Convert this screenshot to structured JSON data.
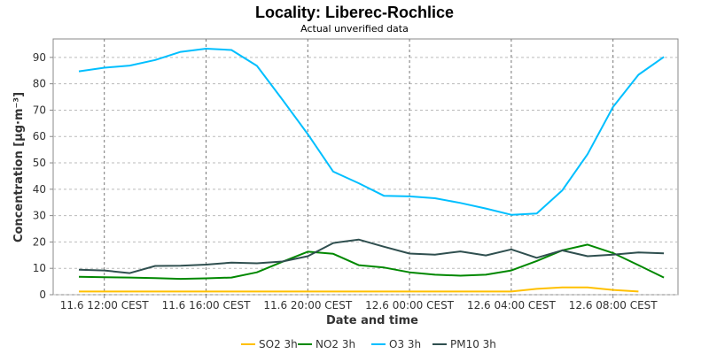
{
  "chart_data": {
    "type": "line",
    "title": "Locality: Liberec-Rochlice",
    "subtitle": "Actual unverified data",
    "xlabel": "Date and time",
    "ylabel": "Concentration [µg·m⁻³]",
    "ylim": [
      0,
      97
    ],
    "yticks": [
      0,
      10,
      20,
      30,
      40,
      50,
      60,
      70,
      80,
      90
    ],
    "grid": true,
    "legend_position": "bottom",
    "x_hours": [
      0,
      1,
      2,
      3,
      4,
      5,
      6,
      7,
      8,
      9,
      10,
      11,
      12,
      13,
      14,
      15,
      16,
      17,
      18,
      19,
      20,
      21,
      22,
      23
    ],
    "xticks": [
      {
        "hour": 0,
        "label": "11.6 12:00 CEST"
      },
      {
        "hour": 4,
        "label": "11.6 16:00 CEST"
      },
      {
        "hour": 8,
        "label": "11.6 20:00 CEST"
      },
      {
        "hour": 12,
        "label": "12.6 00:00 CEST"
      },
      {
        "hour": 16,
        "label": "12.6 04:00 CEST"
      },
      {
        "hour": 20,
        "label": "12.6 08:00 CEST"
      }
    ],
    "series": [
      {
        "name": "SO2 3h",
        "color": "#FFC000",
        "values": [
          1.2,
          1.2,
          1.2,
          1.2,
          1.2,
          1.2,
          1.2,
          1.2,
          1.2,
          1.2,
          1.2,
          1.2,
          1.2,
          1.2,
          1.2,
          1.2,
          1.2,
          1.2,
          2.2,
          2.8,
          2.8,
          1.8,
          1.2,
          null
        ]
      },
      {
        "name": "NO2 3h",
        "color": "#008800",
        "values": [
          6.8,
          6.6,
          6.5,
          6.3,
          6.0,
          6.2,
          6.5,
          8.5,
          12.5,
          16.3,
          15.5,
          11.2,
          10.3,
          8.5,
          7.6,
          7.2,
          7.6,
          9.2,
          12.8,
          16.8,
          19.0,
          15.8,
          11.2,
          6.5
        ]
      },
      {
        "name": "O3 3h",
        "color": "#00BFFF",
        "values": [
          84.7,
          86.1,
          86.9,
          89.0,
          92.1,
          93.3,
          92.8,
          86.8,
          74.0,
          60.9,
          46.7,
          42.3,
          37.5,
          37.3,
          36.6,
          34.8,
          32.7,
          30.3,
          30.8,
          39.5,
          53.3,
          71.2,
          83.4,
          90.2
        ]
      },
      {
        "name": "PM10 3h",
        "color": "#2F4F4F",
        "values": [
          9.5,
          9.2,
          8.2,
          10.9,
          11.0,
          11.4,
          12.2,
          11.9,
          12.6,
          14.6,
          19.6,
          20.9,
          18.2,
          15.6,
          15.2,
          16.4,
          14.9,
          17.2,
          14.0,
          16.8,
          14.6,
          15.2,
          16.0,
          15.7
        ]
      }
    ]
  }
}
